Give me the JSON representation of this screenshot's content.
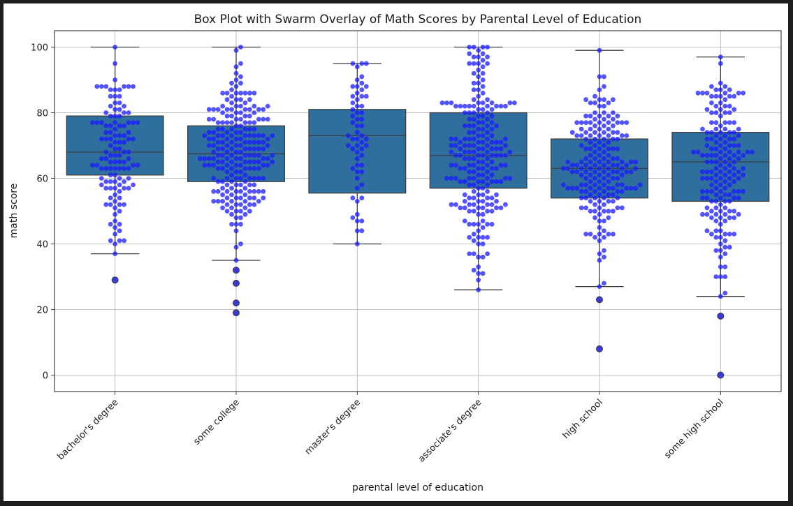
{
  "chart_data": {
    "type": "box",
    "title": "Box Plot with Swarm Overlay of Math Scores by Parental Level of Education",
    "xlabel": "parental level of education",
    "ylabel": "math score",
    "ylim": [
      -5,
      105
    ],
    "yticks": [
      0,
      20,
      40,
      60,
      80,
      100
    ],
    "grid": true,
    "categories": [
      "bachelor's degree",
      "some college",
      "master's degree",
      "associate's degree",
      "high school",
      "some high school"
    ],
    "box_color": "#2e6f9e",
    "swarm_color": "#1a1aff",
    "boxes": [
      {
        "category": "bachelor's degree",
        "whisker_low": 37,
        "q1": 61,
        "median": 68,
        "q3": 79,
        "whisker_high": 100,
        "outliers": [
          29
        ]
      },
      {
        "category": "some college",
        "whisker_low": 35,
        "q1": 59,
        "median": 67.5,
        "q3": 76,
        "whisker_high": 100,
        "outliers": [
          32,
          28,
          22,
          19
        ]
      },
      {
        "category": "master's degree",
        "whisker_low": 40,
        "q1": 55.5,
        "median": 73,
        "q3": 81,
        "whisker_high": 95,
        "outliers": []
      },
      {
        "category": "associate's degree",
        "whisker_low": 26,
        "q1": 57,
        "median": 67,
        "q3": 80,
        "whisker_high": 100,
        "outliers": []
      },
      {
        "category": "high school",
        "whisker_low": 27,
        "q1": 54,
        "median": 63,
        "q3": 72,
        "whisker_high": 99,
        "outliers": [
          23,
          8
        ]
      },
      {
        "category": "some high school",
        "whisker_low": 24,
        "q1": 53,
        "median": 65,
        "q3": 74,
        "whisker_high": 97,
        "outliers": [
          18,
          0
        ]
      }
    ],
    "swarm_n": [
      118,
      226,
      59,
      222,
      196,
      179
    ]
  }
}
